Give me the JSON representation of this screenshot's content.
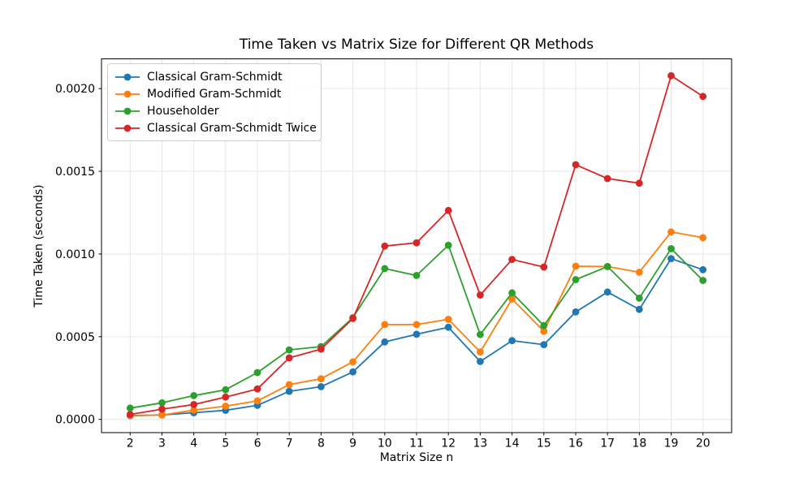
{
  "figure": {
    "background": "#ffffff",
    "spine_color": "#000000",
    "grid_color": "#e6e6e6"
  },
  "chart_data": {
    "type": "line",
    "title": "Time Taken vs Matrix Size for Different QR Methods",
    "xlabel": "Matrix Size n",
    "ylabel": "Time Taken (seconds)",
    "x": [
      2,
      3,
      4,
      5,
      6,
      7,
      8,
      9,
      10,
      11,
      12,
      13,
      14,
      15,
      16,
      17,
      18,
      19,
      20
    ],
    "series": [
      {
        "name": "Classical Gram-Schmidt",
        "color": "#1f77b4",
        "values": [
          2.2e-05,
          2.7e-05,
          4e-05,
          5.5e-05,
          8.5e-05,
          0.00017,
          0.000198,
          0.000287,
          0.000468,
          0.000515,
          0.000557,
          0.00035,
          0.000476,
          0.000452,
          0.00065,
          0.00077,
          0.000665,
          0.000972,
          0.000905
        ]
      },
      {
        "name": "Modified Gram-Schmidt",
        "color": "#ff7f0e",
        "values": [
          2.4e-05,
          2.6e-05,
          5.6e-05,
          8e-05,
          0.000112,
          0.00021,
          0.000246,
          0.000348,
          0.000573,
          0.000573,
          0.000605,
          0.000408,
          0.000728,
          0.000533,
          0.000926,
          0.000924,
          0.00089,
          0.001133,
          0.001099
        ]
      },
      {
        "name": "Householder",
        "color": "#2ca02c",
        "values": [
          6.8e-05,
          0.0001,
          0.000144,
          0.000179,
          0.000283,
          0.00042,
          0.00044,
          0.000615,
          0.000912,
          0.00087,
          0.001053,
          0.000513,
          0.000765,
          0.000567,
          0.000845,
          0.000924,
          0.000733,
          0.001032,
          0.00084
        ]
      },
      {
        "name": "Classical Gram-Schmidt Twice",
        "color": "#d62728",
        "values": [
          3e-05,
          6.2e-05,
          9e-05,
          0.000135,
          0.000184,
          0.000372,
          0.000425,
          0.00061,
          0.001048,
          0.001068,
          0.001263,
          0.000752,
          0.000967,
          0.000921,
          0.00154,
          0.001456,
          0.001428,
          0.002078,
          0.001953
        ]
      }
    ],
    "xticks": [
      2,
      3,
      4,
      5,
      6,
      7,
      8,
      9,
      10,
      11,
      12,
      13,
      14,
      15,
      16,
      17,
      18,
      19,
      20
    ],
    "xtick_labels": [
      "2",
      "3",
      "4",
      "5",
      "6",
      "7",
      "8",
      "9",
      "10",
      "11",
      "12",
      "13",
      "14",
      "15",
      "16",
      "17",
      "18",
      "19",
      "20"
    ],
    "yticks": [
      0.0,
      0.0005,
      0.001,
      0.0015,
      0.002
    ],
    "ytick_labels": [
      "0.0000",
      "0.0005",
      "0.0010",
      "0.0015",
      "0.0020"
    ],
    "xlim": [
      1.1,
      20.9
    ],
    "ylim": [
      -8e-05,
      0.00218
    ],
    "grid": true,
    "legend_position": "upper left",
    "marker": "o",
    "line_width": 1.8,
    "marker_radius": 4.4
  }
}
